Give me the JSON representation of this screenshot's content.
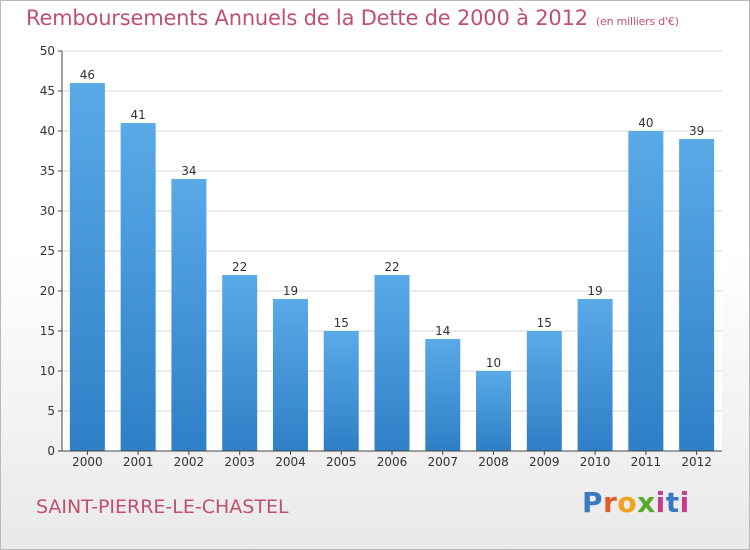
{
  "title": "Remboursements Annuels de la Dette de 2000 à 2012",
  "unit_note": "(en milliers d'€)",
  "commune": "SAINT-PIERRE-LE-CHASTEL",
  "logo_text": "Proxiti",
  "colors": {
    "title": "#c0506e",
    "bar_top": "#5aaae8",
    "bar_bottom": "#2e7fc6",
    "grid": "#d9d9d9",
    "axis": "#444444"
  },
  "chart_data": {
    "type": "bar",
    "categories": [
      "2000",
      "2001",
      "2002",
      "2003",
      "2004",
      "2005",
      "2006",
      "2007",
      "2008",
      "2009",
      "2010",
      "2011",
      "2012"
    ],
    "values": [
      46,
      41,
      34,
      22,
      19,
      15,
      22,
      14,
      10,
      15,
      19,
      40,
      39
    ],
    "title": "Remboursements Annuels de la Dette de 2000 à 2012",
    "xlabel": "",
    "ylabel": "",
    "ylim": [
      0,
      50
    ],
    "yticks": [
      0,
      5,
      10,
      15,
      20,
      25,
      30,
      35,
      40,
      45,
      50
    ],
    "grid": true,
    "legend": "none"
  }
}
